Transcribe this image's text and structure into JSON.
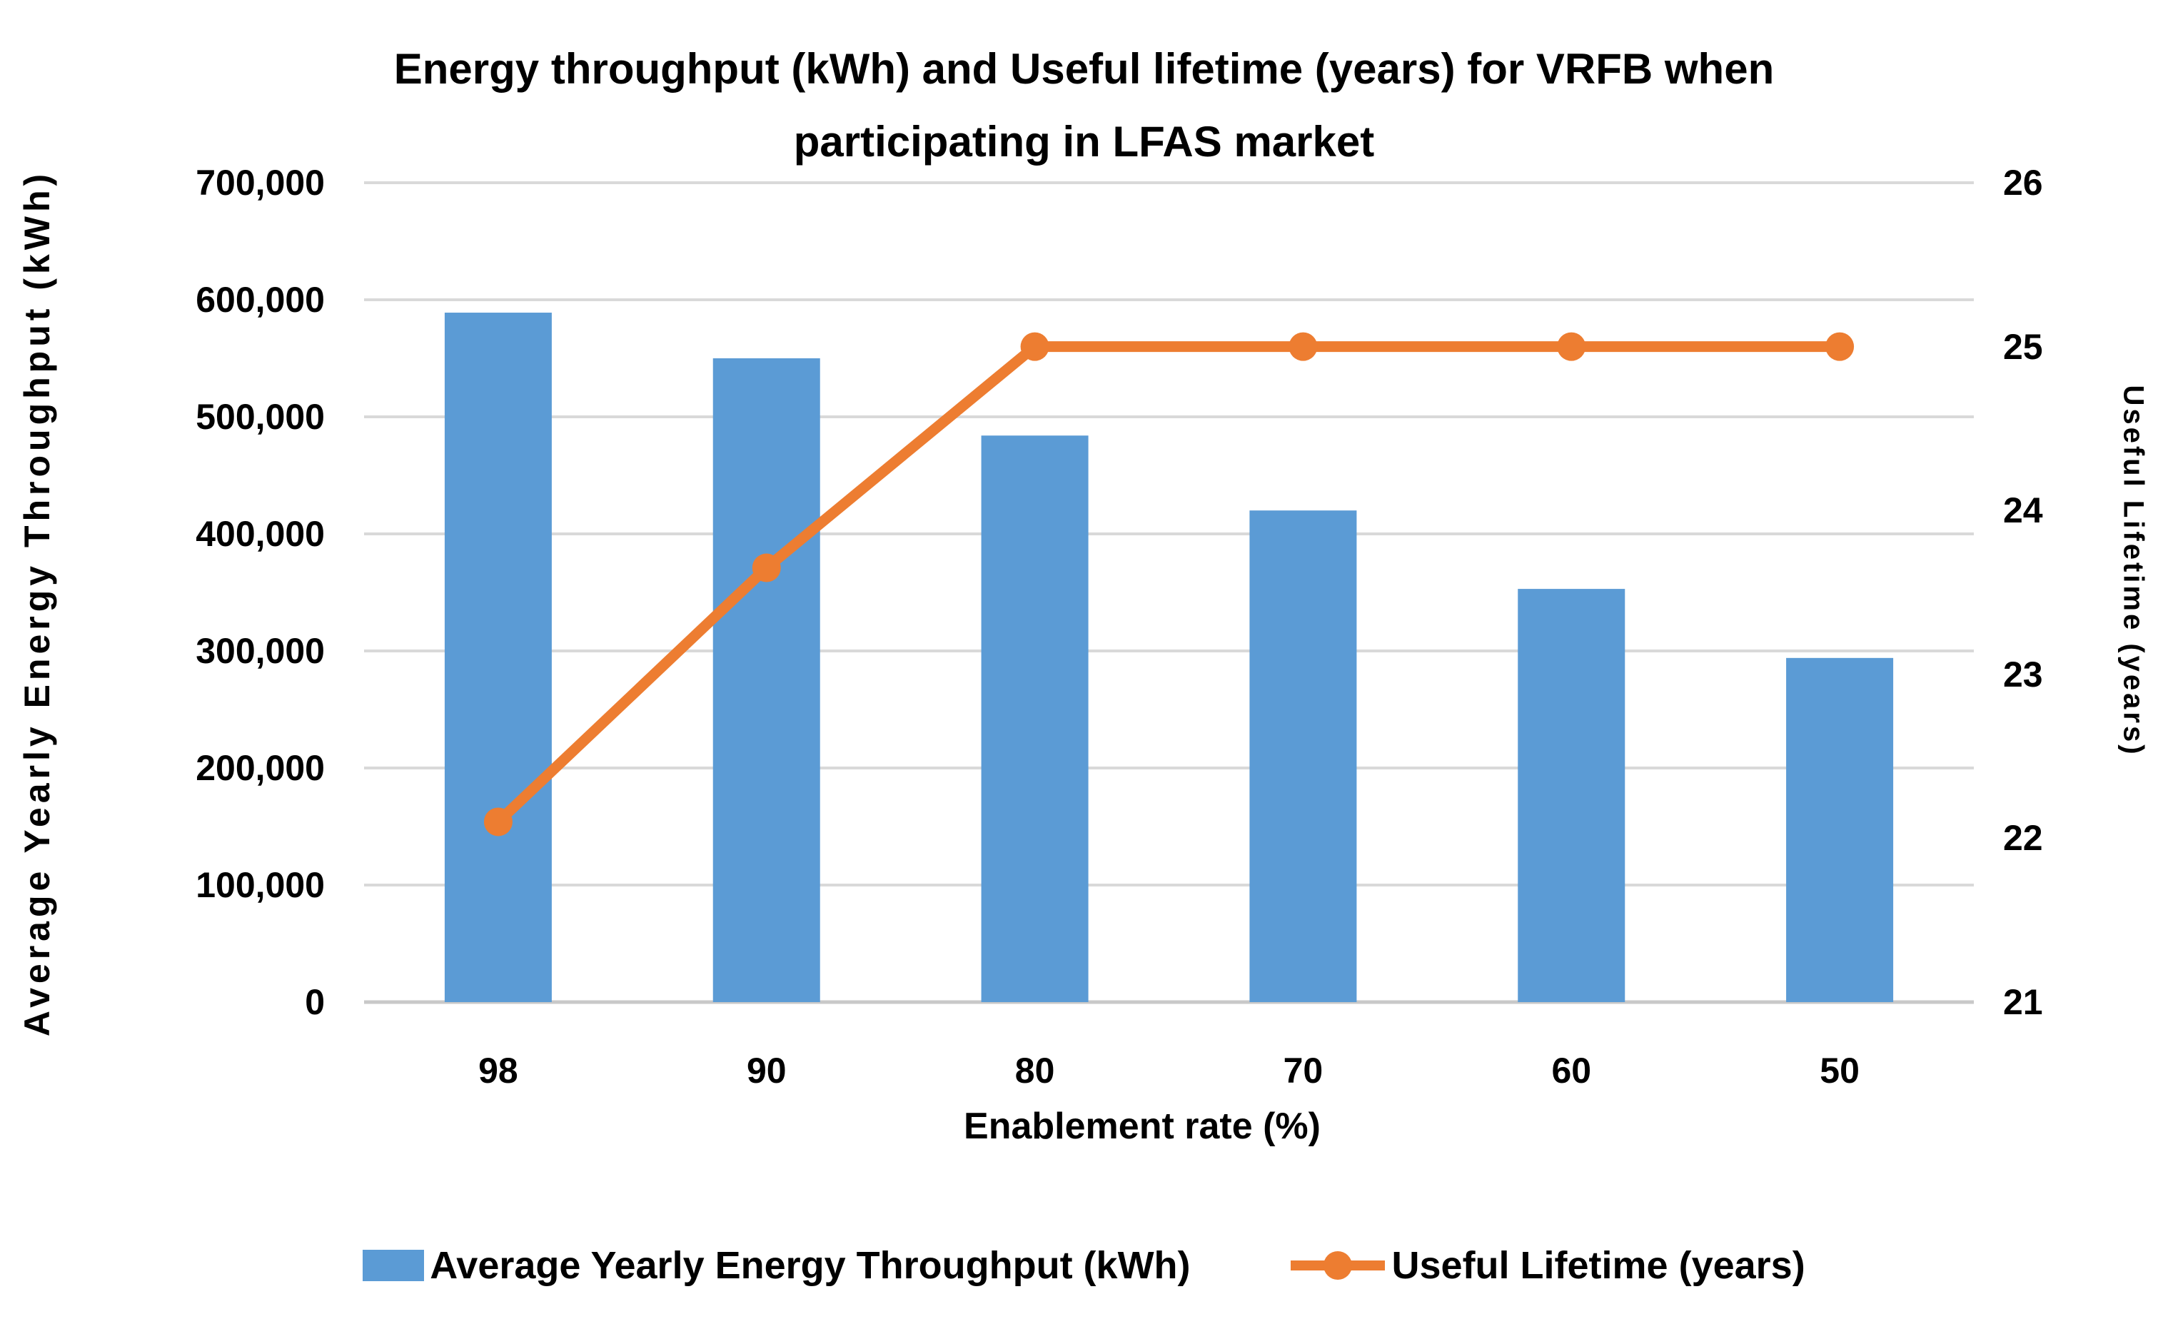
{
  "chart_data": {
    "type": "combo-bar-line",
    "title_line1": "Energy throughput (kWh) and Useful lifetime (years) for VRFB when",
    "title_line2": "participating in LFAS market",
    "categories": [
      "98",
      "90",
      "80",
      "70",
      "60",
      "50"
    ],
    "xlabel": "Enablement rate (%)",
    "ylabel_left": "Average Yearly Energy Throughput (kWh)",
    "ylabel_right": "Useful Lifetime (years)",
    "ylim_left": [
      0,
      700000
    ],
    "ytick_step_left": 100000,
    "y_left_tick_labels": [
      "0",
      "100,000",
      "200,000",
      "300,000",
      "400,000",
      "500,000",
      "600,000",
      "700,000"
    ],
    "ylim_right": [
      21,
      26
    ],
    "ytick_step_right": 1,
    "y_right_tick_labels": [
      "21",
      "22",
      "23",
      "24",
      "25",
      "26"
    ],
    "grid": true,
    "legend_position": "bottom",
    "series": [
      {
        "name": "Average Yearly Energy Throughput (kWh)",
        "type": "bar",
        "y_axis": "left",
        "color": "#5B9BD5",
        "values": [
          589000,
          550000,
          484000,
          420000,
          353000,
          294000
        ]
      },
      {
        "name": "Useful Lifetime (years)",
        "type": "line",
        "marker": "circle",
        "y_axis": "right",
        "color": "#ED7D31",
        "values": [
          22.1,
          23.65,
          25,
          25,
          25,
          25
        ]
      }
    ]
  },
  "colors": {
    "bar": "#5B9BD5",
    "line": "#ED7D31",
    "gridline": "#D9D9D9",
    "axis_line": "#C8C8C8",
    "text": "#000000"
  }
}
